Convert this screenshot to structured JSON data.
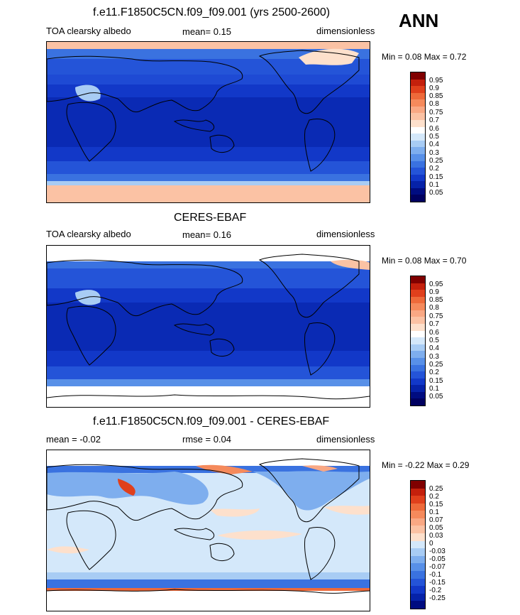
{
  "season": "ANN",
  "panels": [
    {
      "title": "f.e11.F1850C5CN.f09_f09.001 (yrs 2500-2600)",
      "left_label": "TOA clearsky albedo",
      "center_label": "mean=  0.15",
      "right_label": "dimensionless",
      "minmax": "Min =  0.08 Max =  0.72"
    },
    {
      "title": "CERES-EBAF",
      "left_label": "TOA clearsky albedo",
      "center_label": "mean=  0.16",
      "right_label": "dimensionless",
      "minmax": "Min =  0.08 Max =  0.70"
    },
    {
      "title": "f.e11.F1850C5CN.f09_f09.001 - CERES-EBAF",
      "left_label": "mean =  -0.02",
      "center_label": "rmse =  0.04",
      "right_label": "dimensionless",
      "minmax": "Min =  -0.22 Max =  0.29"
    }
  ],
  "colorbar_abs": {
    "labels": [
      "0.95",
      "0.9",
      "0.85",
      "0.8",
      "0.75",
      "0.7",
      "0.6",
      "0.5",
      "0.4",
      "0.3",
      "0.25",
      "0.2",
      "0.15",
      "0.1",
      "0.05"
    ],
    "colors": [
      "#800000",
      "#c4200c",
      "#e0401c",
      "#ee6a3a",
      "#f58a5c",
      "#f9a884",
      "#fbc2a4",
      "#fde0cc",
      "#ffffff",
      "#d4e8fa",
      "#a8ccf4",
      "#7eaeee",
      "#5890e8",
      "#3a72e0",
      "#2454d8",
      "#1238c8",
      "#0622a8",
      "#000c80",
      "#000060"
    ]
  },
  "colorbar_diff": {
    "labels": [
      "0.25",
      "0.2",
      "0.15",
      "0.1",
      "0.07",
      "0.05",
      "0.03",
      "0",
      "-0.03",
      "-0.05",
      "-0.07",
      "-0.1",
      "-0.15",
      "-0.2",
      "-0.25"
    ],
    "colors": [
      "#800000",
      "#c4200c",
      "#e0401c",
      "#ee6a3a",
      "#f58a5c",
      "#f9a884",
      "#fbc2a4",
      "#fde0cc",
      "#d4e8fa",
      "#a8ccf4",
      "#7eaeee",
      "#5890e8",
      "#3a72e0",
      "#2454d8",
      "#1238c8",
      "#0622a8",
      "#000c80"
    ]
  }
}
